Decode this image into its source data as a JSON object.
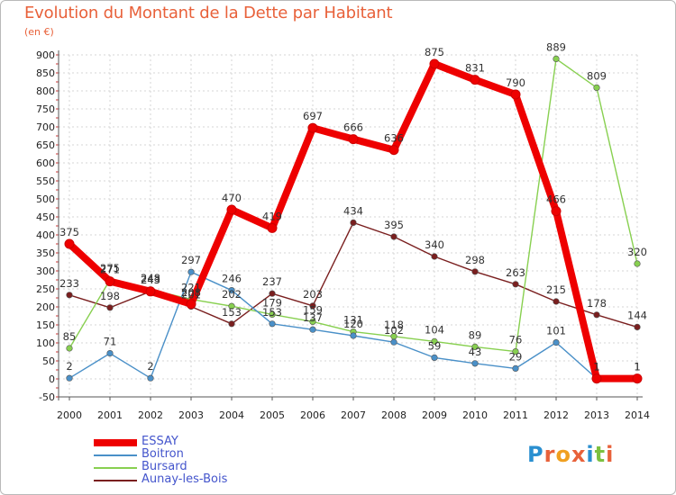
{
  "chart_data": {
    "type": "line",
    "title": "Evolution du Montant de la Dette par Habitant",
    "subtitle": "(en €)",
    "categories": [
      "2000",
      "2001",
      "2002",
      "2003",
      "2004",
      "2005",
      "2006",
      "2007",
      "2008",
      "2009",
      "2010",
      "2011",
      "2012",
      "2013",
      "2014"
    ],
    "ylim": [
      -50,
      900
    ],
    "yticks": [
      -50,
      0,
      50,
      100,
      150,
      200,
      250,
      300,
      350,
      400,
      450,
      500,
      550,
      600,
      650,
      700,
      750,
      800,
      850,
      900
    ],
    "grid": true,
    "legend_position": "bottom-left",
    "series": [
      {
        "name": "ESSAY",
        "color": "#ee0000",
        "values": [
          375,
          271,
          243,
          208,
          470,
          419,
          697,
          666,
          636,
          875,
          831,
          790,
          466,
          1,
          1
        ]
      },
      {
        "name": "Boitron",
        "color": "#4a90c8",
        "values": [
          2,
          71,
          2,
          297,
          246,
          153,
          137,
          120,
          102,
          59,
          43,
          29,
          101,
          1,
          1
        ]
      },
      {
        "name": "Bursard",
        "color": "#88d050",
        "values": [
          85,
          275,
          248,
          221,
          202,
          179,
          159,
          131,
          118,
          104,
          89,
          76,
          889,
          809,
          320
        ]
      },
      {
        "name": "Aunay-les-Bois",
        "color": "#7a1f1f",
        "values": [
          233,
          198,
          243,
          201,
          153,
          237,
          203,
          434,
          395,
          340,
          298,
          263,
          215,
          178,
          144
        ]
      }
    ]
  },
  "logo": {
    "text": "Proxiti"
  }
}
